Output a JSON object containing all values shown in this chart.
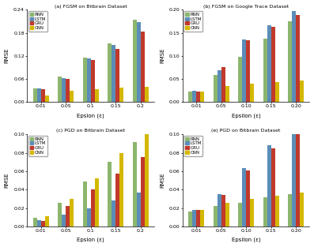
{
  "subplots": [
    {
      "title": "(a) FGSM on Bitbrain Dataset",
      "xlabel": "Epsion (ε)",
      "ylabel": "RMSE",
      "ylim": [
        0,
        0.24
      ],
      "yticks": [
        0.0,
        0.06,
        0.12,
        0.18,
        0.24
      ],
      "xticks": [
        "0.01",
        "0.05",
        "0.1",
        "0.15",
        "0.2"
      ],
      "series": {
        "RNN": [
          0.034,
          0.065,
          0.115,
          0.152,
          0.213
        ],
        "LSTM": [
          0.034,
          0.062,
          0.113,
          0.148,
          0.208
        ],
        "GRU": [
          0.032,
          0.059,
          0.109,
          0.138,
          0.183
        ],
        "CNN": [
          0.016,
          0.028,
          0.032,
          0.037,
          0.04
        ]
      }
    },
    {
      "title": "(b) FGSM on Google Trace Dataset",
      "xlabel": "Epsilon (ε)",
      "ylabel": "RMSE",
      "ylim": [
        0,
        0.2
      ],
      "yticks": [
        0.0,
        0.05,
        0.1,
        0.15,
        0.2
      ],
      "xticks": [
        "0.01",
        "0.05",
        "0.10",
        "0.15",
        "0.20"
      ],
      "series": {
        "RNN": [
          0.022,
          0.058,
          0.098,
          0.138,
          0.175
        ],
        "LSTM": [
          0.024,
          0.068,
          0.136,
          0.167,
          0.197
        ],
        "GRU": [
          0.022,
          0.075,
          0.133,
          0.163,
          0.188
        ],
        "CNN": [
          0.022,
          0.034,
          0.04,
          0.043,
          0.047
        ]
      }
    },
    {
      "title": "(c) PGD on Bitbrain Dataset",
      "xlabel": "Epsion (ε)",
      "ylabel": "RMSE",
      "ylim": [
        0,
        0.1
      ],
      "yticks": [
        0.0,
        0.02,
        0.04,
        0.06,
        0.08,
        0.1
      ],
      "xticks": [
        "0.01",
        "0.05",
        "0.1",
        "0.15",
        "0.2"
      ],
      "series": {
        "RNN": [
          0.009,
          0.026,
          0.049,
          0.07,
          0.092
        ],
        "LSTM": [
          0.007,
          0.013,
          0.02,
          0.028,
          0.037
        ],
        "GRU": [
          0.006,
          0.022,
          0.04,
          0.057,
          0.075
        ],
        "CNN": [
          0.011,
          0.03,
          0.052,
          0.08,
          0.1
        ]
      }
    },
    {
      "title": "(e) PGD on Bitbrain Dataset",
      "xlabel": "Epsilon (ε)",
      "ylabel": "RMSE",
      "ylim": [
        0,
        0.1
      ],
      "yticks": [
        0.0,
        0.02,
        0.04,
        0.06,
        0.08,
        0.1
      ],
      "xticks": [
        "0.01",
        "0.05",
        "0.10",
        "0.15",
        "0.20"
      ],
      "series": {
        "RNN": [
          0.016,
          0.022,
          0.026,
          0.032,
          0.035
        ],
        "LSTM": [
          0.018,
          0.035,
          0.063,
          0.088,
          0.1
        ],
        "GRU": [
          0.018,
          0.034,
          0.061,
          0.085,
          0.1
        ],
        "CNN": [
          0.018,
          0.026,
          0.03,
          0.033,
          0.037
        ]
      }
    }
  ],
  "colors": {
    "RNN": "#8cb66d",
    "LSTM": "#5b8db8",
    "GRU": "#c0392b",
    "CNN": "#d4b800"
  },
  "legend_order": [
    "RNN",
    "LSTM",
    "GRU",
    "CNN"
  ]
}
